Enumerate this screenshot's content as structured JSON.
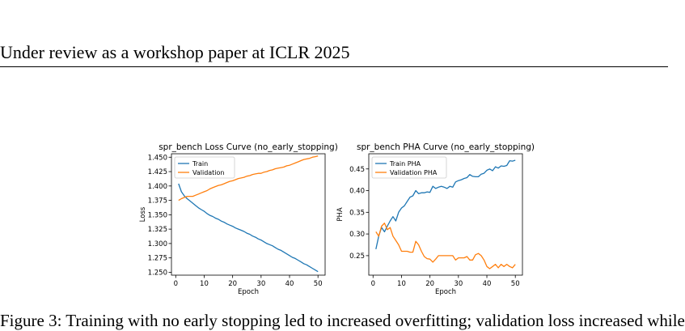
{
  "header": {
    "text": "Under review as a workshop paper at ICLR 2025"
  },
  "caption": {
    "text": "Figure 3: Training with no early stopping led to increased overfitting; validation loss increased while"
  },
  "chart_data": [
    {
      "type": "line",
      "title": "spr_bench Loss Curve (no_early_stopping)",
      "xlabel": "Epoch",
      "ylabel": "Loss",
      "xlim": [
        -1.5,
        52.5
      ],
      "ylim": [
        1.245,
        1.456
      ],
      "xticks": [
        0,
        10,
        20,
        30,
        40,
        50
      ],
      "yticks": [
        1.25,
        1.275,
        1.3,
        1.325,
        1.35,
        1.375,
        1.4,
        1.425,
        1.45
      ],
      "ytick_labels": [
        "1.250",
        "1.275",
        "1.300",
        "1.325",
        "1.350",
        "1.375",
        "1.400",
        "1.425",
        "1.450"
      ],
      "legend_position": "top-left",
      "grid": false,
      "series": [
        {
          "name": "Train",
          "color": "#1f77b4",
          "x": [
            1,
            2,
            3,
            4,
            5,
            6,
            7,
            8,
            9,
            10,
            11,
            12,
            13,
            14,
            15,
            16,
            17,
            18,
            19,
            20,
            21,
            22,
            23,
            24,
            25,
            26,
            27,
            28,
            29,
            30,
            31,
            32,
            33,
            34,
            35,
            36,
            37,
            38,
            39,
            40,
            41,
            42,
            43,
            44,
            45,
            46,
            47,
            48,
            49,
            50
          ],
          "values": [
            1.404,
            1.39,
            1.383,
            1.378,
            1.374,
            1.37,
            1.366,
            1.362,
            1.359,
            1.356,
            1.352,
            1.349,
            1.347,
            1.344,
            1.342,
            1.339,
            1.337,
            1.334,
            1.332,
            1.33,
            1.327,
            1.325,
            1.323,
            1.321,
            1.318,
            1.316,
            1.313,
            1.311,
            1.308,
            1.306,
            1.303,
            1.3,
            1.298,
            1.296,
            1.293,
            1.29,
            1.288,
            1.285,
            1.282,
            1.279,
            1.276,
            1.274,
            1.271,
            1.268,
            1.265,
            1.263,
            1.26,
            1.257,
            1.254,
            1.251
          ]
        },
        {
          "name": "Validation",
          "color": "#ff7f0e",
          "x": [
            1,
            2,
            3,
            4,
            5,
            6,
            7,
            8,
            9,
            10,
            11,
            12,
            13,
            14,
            15,
            16,
            17,
            18,
            19,
            20,
            21,
            22,
            23,
            24,
            25,
            26,
            27,
            28,
            29,
            30,
            31,
            32,
            33,
            34,
            35,
            36,
            37,
            38,
            39,
            40,
            41,
            42,
            43,
            44,
            45,
            46,
            47,
            48,
            49,
            50
          ],
          "values": [
            1.375,
            1.378,
            1.38,
            1.382,
            1.382,
            1.382,
            1.384,
            1.386,
            1.388,
            1.39,
            1.392,
            1.395,
            1.397,
            1.399,
            1.401,
            1.402,
            1.404,
            1.406,
            1.408,
            1.409,
            1.411,
            1.413,
            1.414,
            1.415,
            1.417,
            1.418,
            1.42,
            1.421,
            1.422,
            1.422,
            1.424,
            1.425,
            1.427,
            1.428,
            1.43,
            1.431,
            1.432,
            1.433,
            1.435,
            1.436,
            1.438,
            1.44,
            1.442,
            1.444,
            1.446,
            1.447,
            1.448,
            1.45,
            1.451,
            1.452
          ]
        }
      ]
    },
    {
      "type": "line",
      "title": "spr_bench PHA Curve (no_early_stopping)",
      "xlabel": "Epoch",
      "ylabel": "PHA",
      "xlim": [
        -1.5,
        52.5
      ],
      "ylim": [
        0.205,
        0.485
      ],
      "xticks": [
        0,
        10,
        20,
        30,
        40,
        50
      ],
      "yticks": [
        0.25,
        0.3,
        0.35,
        0.4,
        0.45
      ],
      "ytick_labels": [
        "0.25",
        "0.30",
        "0.35",
        "0.40",
        "0.45"
      ],
      "legend_position": "top-left",
      "grid": false,
      "series": [
        {
          "name": "Train PHA",
          "color": "#1f77b4",
          "x": [
            1,
            2,
            3,
            4,
            5,
            6,
            7,
            8,
            9,
            10,
            11,
            12,
            13,
            14,
            15,
            16,
            17,
            18,
            19,
            20,
            21,
            22,
            23,
            24,
            25,
            26,
            27,
            28,
            29,
            30,
            31,
            32,
            33,
            34,
            35,
            36,
            37,
            38,
            39,
            40,
            41,
            42,
            43,
            44,
            45,
            46,
            47,
            48,
            49,
            50
          ],
          "values": [
            0.265,
            0.295,
            0.315,
            0.305,
            0.318,
            0.33,
            0.34,
            0.33,
            0.35,
            0.36,
            0.365,
            0.375,
            0.385,
            0.388,
            0.4,
            0.393,
            0.395,
            0.395,
            0.397,
            0.396,
            0.41,
            0.405,
            0.408,
            0.41,
            0.408,
            0.405,
            0.41,
            0.408,
            0.42,
            0.423,
            0.425,
            0.428,
            0.43,
            0.437,
            0.433,
            0.432,
            0.432,
            0.438,
            0.44,
            0.447,
            0.45,
            0.446,
            0.455,
            0.452,
            0.457,
            0.456,
            0.458,
            0.469,
            0.468,
            0.47
          ]
        },
        {
          "name": "Validation PHA",
          "color": "#ff7f0e",
          "x": [
            1,
            2,
            3,
            4,
            5,
            6,
            7,
            8,
            9,
            10,
            11,
            12,
            13,
            14,
            15,
            16,
            17,
            18,
            19,
            20,
            21,
            22,
            23,
            24,
            25,
            26,
            27,
            28,
            29,
            30,
            31,
            32,
            33,
            34,
            35,
            36,
            37,
            38,
            39,
            40,
            41,
            42,
            43,
            44,
            45,
            46,
            47,
            48,
            49,
            50
          ],
          "values": [
            0.305,
            0.295,
            0.318,
            0.325,
            0.31,
            0.315,
            0.295,
            0.285,
            0.275,
            0.26,
            0.26,
            0.26,
            0.258,
            0.258,
            0.283,
            0.275,
            0.26,
            0.248,
            0.243,
            0.242,
            0.235,
            0.242,
            0.25,
            0.25,
            0.25,
            0.25,
            0.25,
            0.25,
            0.24,
            0.245,
            0.245,
            0.245,
            0.248,
            0.24,
            0.24,
            0.252,
            0.255,
            0.25,
            0.24,
            0.225,
            0.22,
            0.225,
            0.23,
            0.222,
            0.23,
            0.225,
            0.23,
            0.225,
            0.222,
            0.23
          ]
        }
      ]
    }
  ]
}
